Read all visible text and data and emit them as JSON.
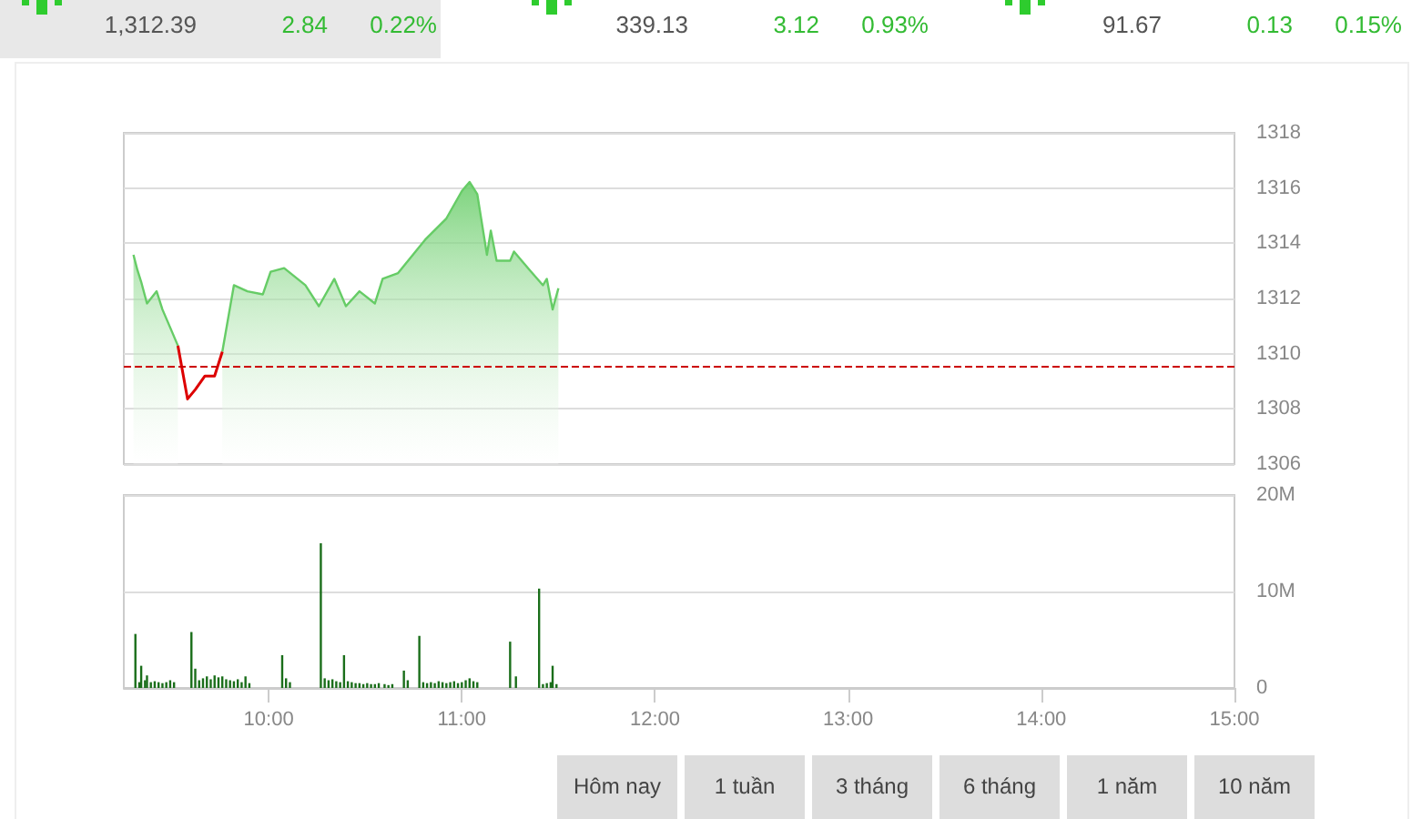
{
  "chart_data": [
    {
      "type": "other",
      "annotations": [
        "1,312.39",
        "2.84",
        "0.22%",
        "339.13",
        "3.12",
        "0.93%",
        "91.67",
        "0.13",
        "0.15%"
      ]
    },
    {
      "type": "area",
      "x": [
        9.3,
        9.32,
        9.34,
        9.37,
        9.42,
        9.45,
        9.49,
        9.53,
        9.58,
        9.62,
        9.67,
        9.72,
        9.76,
        9.82,
        9.89,
        9.97,
        10.01,
        10.08,
        10.19,
        10.26,
        10.34,
        10.4,
        10.47,
        10.55,
        10.59,
        10.67,
        10.81,
        10.92,
        11.0,
        11.04,
        11.08,
        11.13,
        11.15,
        11.18,
        11.25,
        11.27,
        11.35,
        11.42,
        11.44,
        11.47,
        11.5
      ],
      "series": [
        {
          "color": "#66cc66",
          "values": [
            1313.58,
            1313.04,
            1312.6,
            1311.82,
            1312.26,
            1311.6,
            1310.95,
            1310.29,
            null,
            null,
            null,
            null,
            1310.07,
            1312.48,
            1312.26,
            1312.15,
            1312.97,
            1313.1,
            1312.48,
            1311.72,
            1312.71,
            1311.72,
            1312.26,
            1311.82,
            1312.71,
            1312.92,
            1314.13,
            1314.9,
            1315.89,
            1316.22,
            1315.78,
            1313.58,
            1314.46,
            1313.37,
            1313.37,
            1313.7,
            1313.04,
            1312.48,
            1312.71,
            1311.6,
            1312.37
          ]
        },
        {
          "type": "line",
          "color": "#dd0000",
          "x": [
            9.53,
            9.58,
            9.62,
            9.67,
            9.72,
            9.76
          ],
          "values": [
            1310.29,
            1308.36,
            1308.7,
            1309.19,
            1309.19,
            1310.07
          ]
        }
      ],
      "xlim": [
        9.25,
        15
      ],
      "ylim": [
        1306,
        1318
      ],
      "yticks": [
        1306,
        1308,
        1310,
        1312,
        1314,
        1316,
        1318
      ],
      "grid": "y",
      "tick_labels": "y",
      "marker": "none",
      "ref_lines": [
        {
          "axis": "y",
          "value": 1309.55,
          "color": "#cc0000",
          "line_style": "dashed"
        }
      ]
    },
    {
      "type": "bar",
      "color": "#1a6e1a",
      "x": [
        9.31,
        9.33,
        9.34,
        9.36,
        9.37,
        9.39,
        9.41,
        9.43,
        9.45,
        9.47,
        9.49,
        9.51,
        9.6,
        9.62,
        9.64,
        9.66,
        9.68,
        9.7,
        9.72,
        9.74,
        9.76,
        9.78,
        9.8,
        9.82,
        9.84,
        9.86,
        9.88,
        9.9,
        10.07,
        10.09,
        10.11,
        10.27,
        10.29,
        10.31,
        10.33,
        10.35,
        10.37,
        10.39,
        10.41,
        10.43,
        10.45,
        10.47,
        10.49,
        10.51,
        10.53,
        10.55,
        10.57,
        10.6,
        10.62,
        10.64,
        10.7,
        10.72,
        10.78,
        10.8,
        10.82,
        10.84,
        10.86,
        10.88,
        10.9,
        10.92,
        10.94,
        10.96,
        10.98,
        11.0,
        11.02,
        11.04,
        11.06,
        11.08,
        11.25,
        11.28,
        11.4,
        11.42,
        11.44,
        11.46,
        11.47,
        11.49
      ],
      "values": [
        5600000,
        600000,
        2300000,
        800000,
        1300000,
        600000,
        700000,
        600000,
        500000,
        600000,
        800000,
        600000,
        5800000,
        2000000,
        800000,
        1000000,
        1200000,
        900000,
        1300000,
        1100000,
        1200000,
        900000,
        800000,
        700000,
        900000,
        600000,
        1200000,
        500000,
        3400000,
        1000000,
        600000,
        15000000,
        1000000,
        800000,
        900000,
        700000,
        600000,
        3400000,
        700000,
        600000,
        500000,
        500000,
        400000,
        500000,
        400000,
        400000,
        500000,
        400000,
        300000,
        400000,
        1800000,
        800000,
        5400000,
        600000,
        500000,
        600000,
        500000,
        700000,
        600000,
        500000,
        600000,
        700000,
        500000,
        600000,
        800000,
        1000000,
        700000,
        600000,
        4800000,
        1200000,
        10300000,
        400000,
        500000,
        600000,
        2300000,
        400000
      ],
      "xlim": [
        9.25,
        15
      ],
      "xticks": [
        {
          "value": 10,
          "label": "10:00"
        },
        {
          "value": 11,
          "label": "11:00"
        },
        {
          "value": 12,
          "label": "12:00"
        },
        {
          "value": 13,
          "label": "13:00"
        },
        {
          "value": 14,
          "label": "14:00"
        },
        {
          "value": 15,
          "label": "15:00"
        }
      ],
      "ylim": [
        0,
        20000000
      ],
      "yticks": [
        {
          "value": 0,
          "label": "0"
        },
        {
          "value": 10000000,
          "label": "10M"
        },
        {
          "value": 20000000,
          "label": "20M"
        }
      ],
      "grid": "y"
    },
    {
      "type": "other",
      "annotations": [
        "Hôm nay",
        "1 tuần",
        "3 tháng",
        "6 tháng",
        "1 năm",
        "10 năm"
      ]
    }
  ]
}
